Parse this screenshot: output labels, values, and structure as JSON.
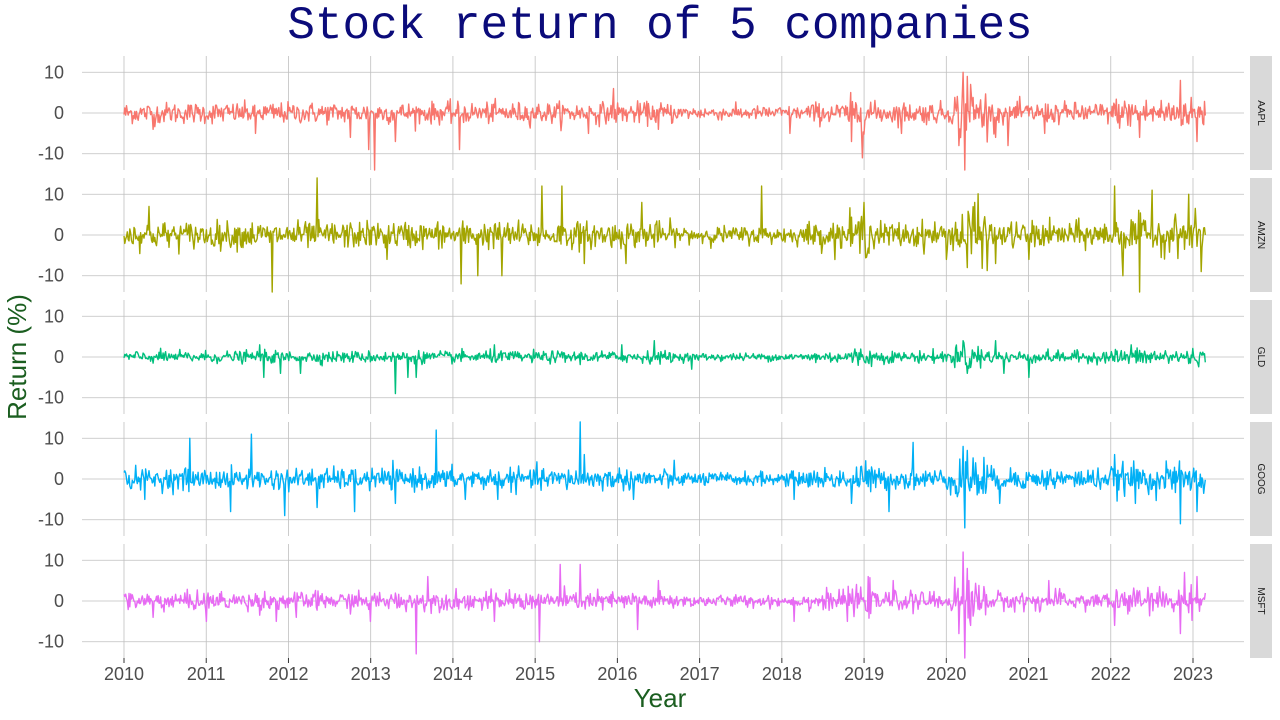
{
  "chart_data": {
    "type": "line",
    "title": "Stock return of 5 companies",
    "xlabel": "Year",
    "ylabel": "Return (%)",
    "xlim": [
      2010,
      2023.15
    ],
    "ylim": [
      -14,
      14
    ],
    "x_ticks": [
      "2010",
      "2011",
      "2012",
      "2013",
      "2014",
      "2015",
      "2016",
      "2017",
      "2018",
      "2019",
      "2020",
      "2021",
      "2022",
      "2023"
    ],
    "y_ticks": [
      10,
      0,
      -10
    ],
    "y_tick_labels": [
      "10",
      "0",
      "-10"
    ],
    "grid": true,
    "facets": "rows",
    "colors": {
      "title": "#0b0b7a",
      "axis_title": "#1b5e20",
      "grid": "#bfbfbf",
      "strip": "#d9d9d9"
    },
    "series": [
      {
        "name": "AAPL",
        "color": "#f8766d",
        "volatility": 1.6,
        "shocks": [
          [
            2010.35,
            -4
          ],
          [
            2011.6,
            -5
          ],
          [
            2012.75,
            -6
          ],
          [
            2012.98,
            -9
          ],
          [
            2013.05,
            -14
          ],
          [
            2013.3,
            -7
          ],
          [
            2014.08,
            -9
          ],
          [
            2015.65,
            -5
          ],
          [
            2015.95,
            6
          ],
          [
            2016.5,
            -4
          ],
          [
            2018.1,
            -5
          ],
          [
            2018.85,
            -7
          ],
          [
            2018.98,
            -11
          ],
          [
            2019.45,
            -5
          ],
          [
            2020.15,
            -8
          ],
          [
            2020.2,
            10
          ],
          [
            2020.22,
            -14
          ],
          [
            2020.25,
            9
          ],
          [
            2020.3,
            7
          ],
          [
            2020.6,
            -6
          ],
          [
            2020.75,
            -8
          ],
          [
            2021.2,
            -5
          ],
          [
            2022.35,
            -6
          ],
          [
            2022.85,
            8
          ],
          [
            2023.05,
            -7
          ]
        ]
      },
      {
        "name": "AMZN",
        "color": "#a3a500",
        "volatility": 2.0,
        "shocks": [
          [
            2010.3,
            7
          ],
          [
            2011.8,
            -14
          ],
          [
            2012.35,
            14
          ],
          [
            2013.2,
            -6
          ],
          [
            2014.1,
            -12
          ],
          [
            2014.3,
            -10
          ],
          [
            2014.6,
            -10
          ],
          [
            2015.08,
            12
          ],
          [
            2015.32,
            12
          ],
          [
            2015.6,
            -7
          ],
          [
            2016.1,
            -7
          ],
          [
            2016.3,
            8
          ],
          [
            2017.75,
            12
          ],
          [
            2019.0,
            8
          ],
          [
            2020.0,
            -6
          ],
          [
            2020.25,
            -8
          ],
          [
            2020.35,
            8
          ],
          [
            2020.6,
            -7
          ],
          [
            2021.0,
            -6
          ],
          [
            2022.05,
            12
          ],
          [
            2022.15,
            -10
          ],
          [
            2022.35,
            -16
          ],
          [
            2022.5,
            11
          ],
          [
            2022.95,
            10
          ],
          [
            2023.1,
            -9
          ]
        ]
      },
      {
        "name": "GLD",
        "color": "#00bf7d",
        "volatility": 0.9,
        "shocks": [
          [
            2011.65,
            3
          ],
          [
            2011.7,
            -5
          ],
          [
            2011.9,
            -4
          ],
          [
            2012.15,
            -4
          ],
          [
            2013.3,
            -9
          ],
          [
            2013.45,
            -5
          ],
          [
            2013.55,
            -5
          ],
          [
            2014.5,
            3
          ],
          [
            2016.05,
            3
          ],
          [
            2016.45,
            4
          ],
          [
            2016.9,
            -3
          ],
          [
            2020.2,
            4
          ],
          [
            2020.25,
            -4
          ],
          [
            2020.6,
            4
          ],
          [
            2020.7,
            -4
          ],
          [
            2021.0,
            -5
          ],
          [
            2022.25,
            3
          ]
        ]
      },
      {
        "name": "GOOG",
        "color": "#00b0f6",
        "volatility": 1.6,
        "shocks": [
          [
            2010.25,
            -5
          ],
          [
            2010.8,
            10
          ],
          [
            2011.3,
            -8
          ],
          [
            2011.55,
            11
          ],
          [
            2011.95,
            -9
          ],
          [
            2012.35,
            -7
          ],
          [
            2012.8,
            -8
          ],
          [
            2013.3,
            -6
          ],
          [
            2013.8,
            12
          ],
          [
            2014.15,
            -5
          ],
          [
            2014.55,
            -5
          ],
          [
            2015.55,
            14
          ],
          [
            2015.6,
            6
          ],
          [
            2016.2,
            -5
          ],
          [
            2018.15,
            -5
          ],
          [
            2018.85,
            -6
          ],
          [
            2019.3,
            -8
          ],
          [
            2019.6,
            9
          ],
          [
            2020.2,
            8
          ],
          [
            2020.22,
            -12
          ],
          [
            2020.25,
            7
          ],
          [
            2020.65,
            -6
          ],
          [
            2022.05,
            6
          ],
          [
            2022.3,
            -6
          ],
          [
            2022.85,
            -11
          ],
          [
            2023.05,
            -8
          ]
        ]
      },
      {
        "name": "MSFT",
        "color": "#e76bf3",
        "volatility": 1.4,
        "shocks": [
          [
            2010.35,
            -4
          ],
          [
            2011.0,
            -5
          ],
          [
            2011.85,
            -5
          ],
          [
            2012.1,
            -4
          ],
          [
            2013.0,
            -5
          ],
          [
            2013.55,
            -13
          ],
          [
            2013.7,
            6
          ],
          [
            2014.5,
            -5
          ],
          [
            2015.05,
            -10
          ],
          [
            2015.3,
            9
          ],
          [
            2015.55,
            9
          ],
          [
            2016.25,
            -7
          ],
          [
            2016.5,
            5
          ],
          [
            2018.15,
            -5
          ],
          [
            2018.8,
            -5
          ],
          [
            2019.05,
            6
          ],
          [
            2019.35,
            5
          ],
          [
            2020.15,
            -8
          ],
          [
            2020.2,
            12
          ],
          [
            2020.22,
            -17
          ],
          [
            2020.25,
            8
          ],
          [
            2020.3,
            -6
          ],
          [
            2021.25,
            5
          ],
          [
            2022.05,
            -6
          ],
          [
            2022.85,
            -8
          ],
          [
            2022.9,
            7
          ],
          [
            2023.05,
            6
          ]
        ]
      }
    ]
  }
}
